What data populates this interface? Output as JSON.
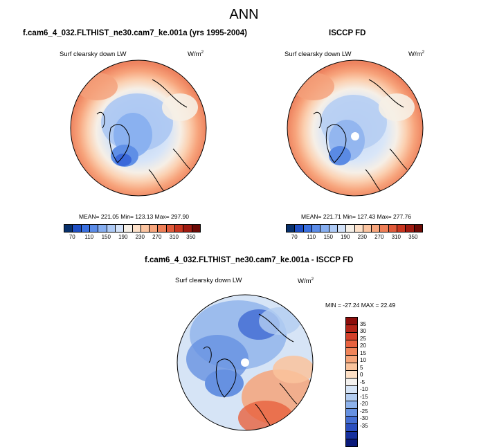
{
  "figure_title": "ANN",
  "panels": [
    {
      "title": "f.cam6_4_032.FLTHIST_ne30.cam7_ke.001a (yrs 1995-2004)",
      "variable": "Surf clearsky down LW",
      "units_base": "W/m",
      "units_exp": "2",
      "stats": "MEAN= 221.05  Min= 123.13  Max= 297.90"
    },
    {
      "title": "ISCCP FD",
      "variable": "Surf clearsky down LW",
      "units_base": "W/m",
      "units_exp": "2",
      "stats": "MEAN= 221.71  Min= 127.43  Max= 277.76"
    },
    {
      "title": "f.cam6_4_032.FLTHIST_ne30.cam7_ke.001a - ISCCP FD",
      "variable": "Surf clearsky down LW",
      "units_base": "W/m",
      "units_exp": "2",
      "stats": "MIN = -27.24 MAX =  22.49"
    }
  ],
  "colorbar_abs": {
    "ticks": [
      "70",
      "110",
      "150",
      "190",
      "230",
      "270",
      "310",
      "350"
    ],
    "colors": [
      "#08306b",
      "#1f4fc4",
      "#3a70e0",
      "#5b8ce8",
      "#86aef0",
      "#aecaf5",
      "#d3e2f8",
      "#f5efe6",
      "#fde0c8",
      "#fbc4a0",
      "#f7a57c",
      "#ef7f57",
      "#e05a3a",
      "#c8351f",
      "#9e1a10",
      "#6b0a05"
    ]
  },
  "colorbar_diff": {
    "ticks": [
      "35",
      "30",
      "25",
      "20",
      "15",
      "10",
      "5",
      "0",
      "-5",
      "-10",
      "-15",
      "-20",
      "-25",
      "-30",
      "-35"
    ],
    "colors": [
      "#8c0d0b",
      "#b32418",
      "#d4402a",
      "#e8623f",
      "#f08459",
      "#f6a57a",
      "#fac39c",
      "#fde0c6",
      "#f4f1ee",
      "#d6e4f6",
      "#b3cdf1",
      "#8db2eb",
      "#6691e1",
      "#456fd3",
      "#2b4fbf",
      "#16309e",
      "#0a1a7a"
    ]
  }
}
